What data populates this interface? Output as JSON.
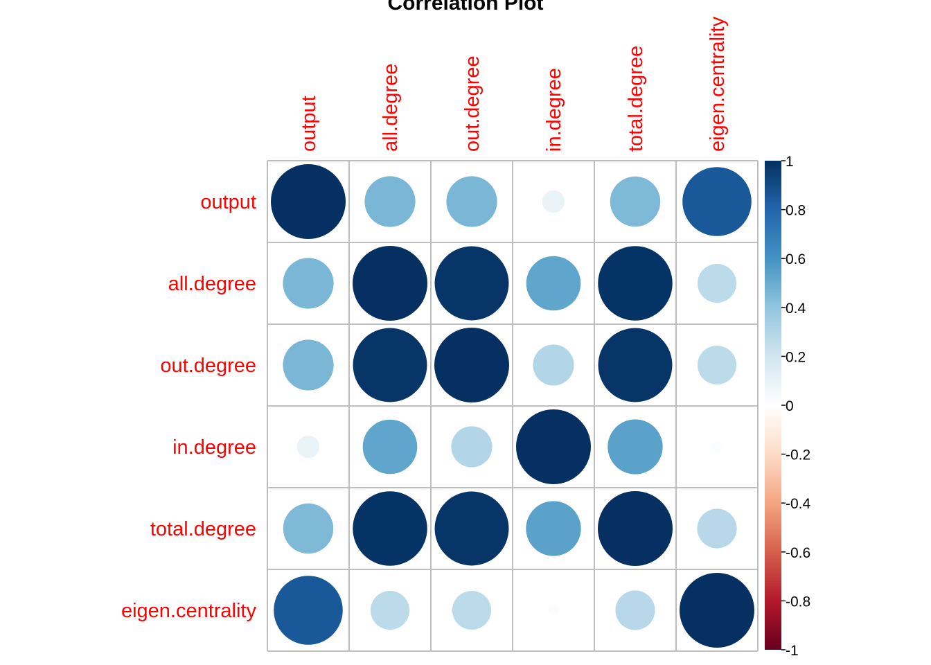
{
  "chart_data": {
    "type": "heatmap",
    "title": "Correlation Plot",
    "variables": [
      "output",
      "all.degree",
      "out.degree",
      "in.degree",
      "total.degree",
      "eigen.centrality"
    ],
    "matrix": [
      [
        1.0,
        0.46,
        0.46,
        0.09,
        0.45,
        0.85
      ],
      [
        0.46,
        1.0,
        0.98,
        0.53,
        0.99,
        0.27
      ],
      [
        0.46,
        0.98,
        1.0,
        0.3,
        0.98,
        0.27
      ],
      [
        0.09,
        0.53,
        0.3,
        1.0,
        0.54,
        0.02
      ],
      [
        0.45,
        0.99,
        0.98,
        0.54,
        1.0,
        0.28
      ],
      [
        0.85,
        0.27,
        0.27,
        0.02,
        0.28,
        1.0
      ]
    ],
    "color_scale": {
      "range": [
        -1,
        1
      ],
      "ticks": [
        "1",
        "0.8",
        "0.6",
        "0.4",
        "0.2",
        "0",
        "-0.2",
        "-0.4",
        "-0.6",
        "-0.8",
        "-1"
      ],
      "colors": [
        "#67001F",
        "#B2182B",
        "#D6604D",
        "#F4A582",
        "#FDDBC7",
        "#FFFFFF",
        "#D1E5F0",
        "#92C5DE",
        "#4393C3",
        "#2166AC",
        "#053061"
      ]
    },
    "label_color": "#FF0000",
    "grid_color": "#BEBEBE",
    "method": "circle"
  }
}
